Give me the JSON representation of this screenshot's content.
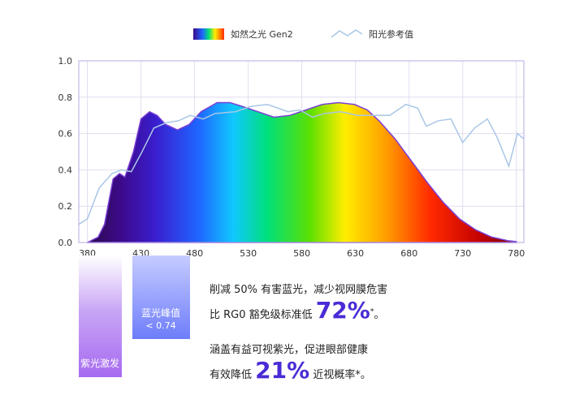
{
  "chart_data": {
    "type": "area",
    "legend": "top",
    "grid": true,
    "xlim": [
      372,
      787
    ],
    "ylim": [
      0,
      1
    ],
    "xticks": [
      380,
      430,
      480,
      530,
      580,
      630,
      680,
      730,
      780
    ],
    "yticks": [
      {
        "value": 0,
        "label": "0.0"
      },
      0.2,
      0.4,
      0.6,
      0.8,
      {
        "value": 1,
        "label": "1.0"
      }
    ],
    "series": [
      {
        "name": "如然之光 Gen2",
        "kind": "area",
        "x": [
          380,
          390,
          396,
          404,
          410,
          415,
          423,
          430,
          438,
          445,
          453,
          464,
          475,
          486,
          501,
          513,
          524,
          539,
          554,
          569,
          584,
          599,
          614,
          629,
          641,
          652,
          667,
          682,
          697,
          712,
          727,
          742,
          757,
          772,
          780
        ],
        "values": [
          0,
          0.03,
          0.1,
          0.35,
          0.38,
          0.36,
          0.5,
          0.68,
          0.72,
          0.7,
          0.65,
          0.62,
          0.65,
          0.72,
          0.77,
          0.77,
          0.75,
          0.72,
          0.69,
          0.7,
          0.73,
          0.76,
          0.77,
          0.76,
          0.73,
          0.67,
          0.57,
          0.45,
          0.33,
          0.22,
          0.13,
          0.07,
          0.03,
          0.01,
          0.005
        ]
      },
      {
        "name": "阳光参考值",
        "kind": "line",
        "color": "#a9c6e6",
        "x": [
          372,
          380,
          391,
          403,
          412,
          421,
          431,
          442,
          454,
          465,
          476,
          488,
          499,
          518,
          533,
          548,
          567,
          578,
          590,
          601,
          616,
          632,
          647,
          662,
          677,
          688,
          696,
          707,
          719,
          730,
          741,
          753,
          762,
          773,
          781,
          787
        ],
        "values": [
          0.1,
          0.13,
          0.3,
          0.38,
          0.4,
          0.39,
          0.5,
          0.63,
          0.66,
          0.67,
          0.7,
          0.68,
          0.71,
          0.72,
          0.75,
          0.76,
          0.72,
          0.73,
          0.69,
          0.71,
          0.72,
          0.7,
          0.7,
          0.7,
          0.76,
          0.74,
          0.64,
          0.67,
          0.68,
          0.55,
          0.63,
          0.68,
          0.58,
          0.42,
          0.6,
          0.57
        ]
      }
    ]
  },
  "boxes": [
    {
      "label": "紫光激发"
    },
    {
      "label": "蓝光峰值",
      "sub": "< 0.74"
    }
  ],
  "claims": [
    {
      "text": "削减 50% 有害蓝光，减少视网膜危害"
    },
    {
      "text": "比 RG0 豁免级标准低",
      "highlight": "72%",
      "mark": "*",
      "end": "。"
    },
    {
      "text": "涵盖有益可视紫光，促进眼部健康"
    },
    {
      "text": "有效降低",
      "highlight": "21%",
      "end": "近视概率*。"
    }
  ]
}
